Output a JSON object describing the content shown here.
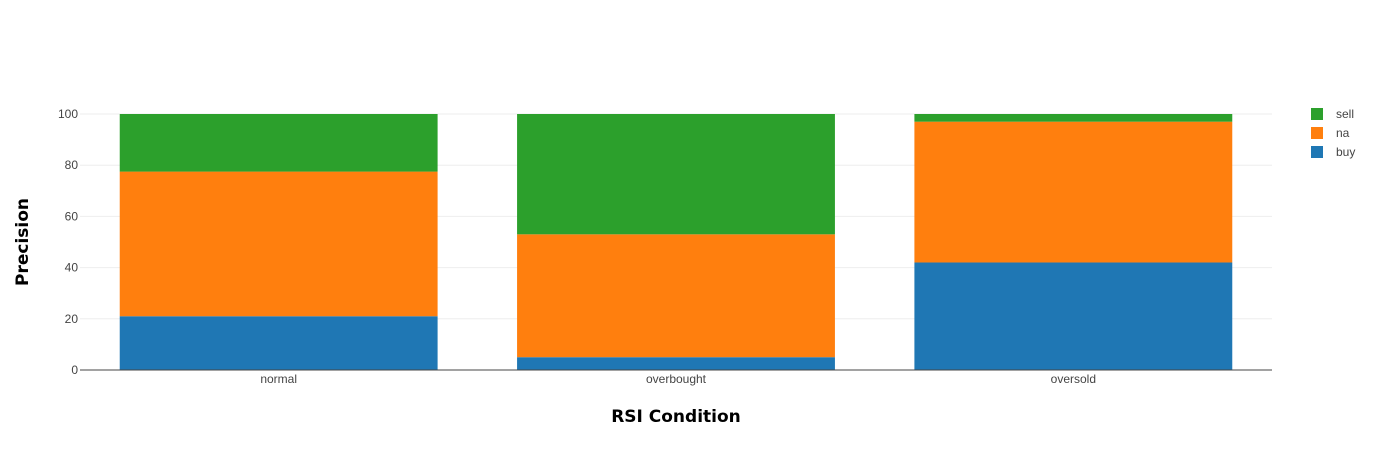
{
  "chart_data": {
    "type": "bar",
    "stacked": true,
    "categories": [
      "normal",
      "overbought",
      "oversold"
    ],
    "series": [
      {
        "name": "buy",
        "color": "#1f77b4",
        "values": [
          21,
          5,
          42
        ]
      },
      {
        "name": "na",
        "color": "#ff7f0e",
        "values": [
          56.5,
          48,
          55
        ]
      },
      {
        "name": "sell",
        "color": "#2ca02c",
        "values": [
          22.5,
          47,
          3
        ]
      }
    ],
    "title": "",
    "xlabel": "RSI Condition",
    "ylabel": "Precision",
    "ylim": [
      0,
      100
    ],
    "yticks": [
      0,
      20,
      40,
      60,
      80,
      100
    ],
    "grid": true,
    "legend": {
      "placement": "top-right",
      "order": [
        "sell",
        "na",
        "buy"
      ]
    }
  }
}
